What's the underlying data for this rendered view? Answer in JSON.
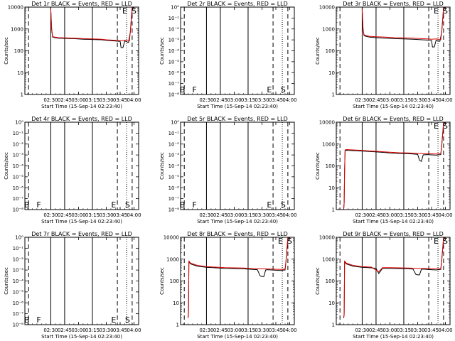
{
  "figure": {
    "x_axis_title": "Start Time (15-Sep-14 02:23:40)",
    "y_axis_title": "Counts/sec",
    "x_tick_labels": [
      "02:30",
      "02:45",
      "03:00",
      "03:15",
      "03:30",
      "03:45",
      "04:00"
    ],
    "event_marks": [
      "B",
      "F",
      "E",
      "S"
    ],
    "colors": {
      "events": "#000000",
      "lld": "#e00000",
      "background": "#ffffff"
    }
  },
  "chart_data": [
    {
      "type": "line",
      "title": "Det 1r BLACK = Events, RED = LLD",
      "xlabel": "Start Time (15-Sep-14 02:23:40)",
      "ylabel": "Counts/sec",
      "scale": "log",
      "ylim": [
        1,
        10000
      ],
      "y_tick_labels": [
        "1",
        "10",
        "100",
        "1000",
        "10000"
      ],
      "x_range_minutes": [
        -28,
        95
      ],
      "markers_drawn": [
        "E",
        "S"
      ],
      "has_data": true,
      "series": [
        {
          "name": "Events",
          "x": [
            0,
            1,
            2,
            3,
            4,
            5,
            8,
            15,
            25,
            35,
            45,
            55,
            60,
            65,
            70,
            75,
            76,
            78,
            80,
            82,
            83,
            84,
            86,
            88,
            90,
            92
          ],
          "y": [
            8000,
            900,
            420,
            420,
            400,
            400,
            380,
            370,
            360,
            340,
            330,
            320,
            300,
            290,
            280,
            270,
            140,
            140,
            280,
            260,
            250,
            240,
            700,
            9000,
            12000,
            12000
          ]
        },
        {
          "name": "LLD",
          "x": [
            0,
            1,
            2,
            3,
            4,
            5,
            8,
            15,
            25,
            35,
            45,
            55,
            60,
            65,
            70,
            75,
            80,
            85,
            86,
            88,
            90,
            92
          ],
          "y": [
            8000,
            1000,
            450,
            440,
            420,
            420,
            400,
            390,
            380,
            360,
            350,
            340,
            320,
            310,
            300,
            290,
            300,
            280,
            750,
            9500,
            12000,
            12000
          ]
        }
      ]
    },
    {
      "type": "line",
      "title": "Det 2r BLACK = Events, RED = LLD",
      "xlabel": "Start Time (15-Sep-14 02:23:40)",
      "ylabel": "Counts/sec",
      "scale": "log_empty",
      "y_tick_labels": [
        "10⁻⁸",
        "10⁻⁷",
        "10⁻⁶",
        "10⁻⁵",
        "10⁻⁴",
        "10⁻³",
        "10⁻²",
        "10⁻¹",
        "10⁰"
      ],
      "x_range_minutes": [
        -28,
        95
      ],
      "markers_drawn": [
        "B",
        "F",
        "E",
        "S"
      ],
      "has_data": false,
      "series": []
    },
    {
      "type": "line",
      "title": "Det 3r BLACK = Events, RED = LLD",
      "xlabel": "Start Time (15-Sep-14 02:23:40)",
      "ylabel": "Counts/sec",
      "scale": "log",
      "ylim": [
        1,
        10000
      ],
      "y_tick_labels": [
        "1",
        "10",
        "100",
        "1000",
        "10000"
      ],
      "x_range_minutes": [
        -28,
        95
      ],
      "markers_drawn": [
        "E",
        "S"
      ],
      "has_data": true,
      "series": [
        {
          "name": "Events",
          "x": [
            0,
            1,
            2,
            3,
            4,
            5,
            8,
            15,
            25,
            35,
            45,
            55,
            60,
            65,
            70,
            75,
            76,
            78,
            80,
            82,
            83,
            84,
            86,
            88,
            90,
            92
          ],
          "y": [
            8000,
            900,
            500,
            480,
            460,
            450,
            420,
            400,
            380,
            360,
            350,
            340,
            330,
            320,
            310,
            300,
            150,
            150,
            310,
            290,
            280,
            270,
            700,
            9000,
            12000,
            12000
          ]
        },
        {
          "name": "LLD",
          "x": [
            0,
            1,
            2,
            3,
            4,
            5,
            8,
            15,
            25,
            35,
            45,
            55,
            60,
            65,
            70,
            75,
            80,
            85,
            86,
            88,
            90,
            92
          ],
          "y": [
            8000,
            1000,
            540,
            520,
            500,
            490,
            460,
            440,
            420,
            400,
            390,
            380,
            370,
            360,
            350,
            340,
            350,
            330,
            750,
            9500,
            12000,
            12000
          ]
        }
      ]
    },
    {
      "type": "line",
      "title": "Det 4r BLACK = Events, RED = LLD",
      "xlabel": "Start Time (15-Sep-14 02:23:40)",
      "ylabel": "Counts/sec",
      "scale": "log_empty",
      "y_tick_labels": [
        "10⁻⁸",
        "10⁻⁷",
        "10⁻⁶",
        "10⁻⁵",
        "10⁻⁴",
        "10⁻³",
        "10⁻²",
        "10⁻¹",
        "10⁰"
      ],
      "x_range_minutes": [
        -28,
        95
      ],
      "markers_drawn": [
        "B",
        "F",
        "E",
        "S"
      ],
      "has_data": false,
      "series": []
    },
    {
      "type": "line",
      "title": "Det 5r BLACK = Events, RED = LLD",
      "xlabel": "Start Time (15-Sep-14 02:23:40)",
      "ylabel": "Counts/sec",
      "scale": "log_empty",
      "y_tick_labels": [
        "10⁻⁸",
        "10⁻⁷",
        "10⁻⁶",
        "10⁻⁵",
        "10⁻⁴",
        "10⁻³",
        "10⁻²",
        "10⁻¹",
        "10⁰"
      ],
      "x_range_minutes": [
        -28,
        95
      ],
      "markers_drawn": [
        "B",
        "F",
        "E",
        "S"
      ],
      "has_data": false,
      "series": []
    },
    {
      "type": "line",
      "title": "Det 6r BLACK = Events, RED = LLD",
      "xlabel": "Start Time (15-Sep-14 02:23:40)",
      "ylabel": "Counts/sec",
      "scale": "log",
      "ylim": [
        1,
        10000
      ],
      "y_tick_labels": [
        "1",
        "10",
        "100",
        "1000",
        "10000"
      ],
      "x_range_minutes": [
        -28,
        95
      ],
      "markers_drawn": [
        "E",
        "S"
      ],
      "has_data": true,
      "series": [
        {
          "name": "Events",
          "x": [
            -20,
            -19.5,
            -19,
            -18.5,
            -17,
            -10,
            0,
            10,
            20,
            30,
            40,
            50,
            55,
            60,
            62,
            64,
            66,
            70,
            75,
            80,
            85,
            86,
            88,
            90,
            92
          ],
          "y": [
            1,
            2,
            60,
            500,
            520,
            500,
            480,
            450,
            420,
            390,
            370,
            360,
            350,
            340,
            180,
            160,
            320,
            330,
            320,
            310,
            330,
            800,
            9000,
            12000,
            12000
          ]
        },
        {
          "name": "LLD",
          "x": [
            -20,
            -19.5,
            -19,
            -18.5,
            -17,
            -10,
            0,
            10,
            20,
            30,
            40,
            50,
            60,
            70,
            80,
            85,
            86,
            88,
            90,
            92
          ],
          "y": [
            1,
            2,
            70,
            540,
            560,
            540,
            510,
            480,
            450,
            420,
            400,
            390,
            370,
            360,
            350,
            360,
            850,
            9500,
            12000,
            12000
          ]
        }
      ]
    },
    {
      "type": "line",
      "title": "Det 7r BLACK = Events, RED = LLD",
      "xlabel": "Start Time (15-Sep-14 02:23:40)",
      "ylabel": "Counts/sec",
      "scale": "log_empty",
      "y_tick_labels": [
        "10⁻⁸",
        "10⁻⁷",
        "10⁻⁶",
        "10⁻⁵",
        "10⁻⁴",
        "10⁻³",
        "10⁻²",
        "10⁻¹",
        "10⁰"
      ],
      "x_range_minutes": [
        -28,
        95
      ],
      "markers_drawn": [
        "B",
        "F",
        "E",
        "S"
      ],
      "has_data": false,
      "series": []
    },
    {
      "type": "line",
      "title": "Det 8r BLACK = Events, RED = LLD",
      "xlabel": "Start Time (15-Sep-14 02:23:40)",
      "ylabel": "Counts/sec",
      "scale": "log",
      "ylim": [
        1,
        10000
      ],
      "y_tick_labels": [
        "1",
        "10",
        "100",
        "1000",
        "10000"
      ],
      "x_range_minutes": [
        -28,
        95
      ],
      "markers_drawn": [
        "E",
        "S"
      ],
      "has_data": true,
      "series": [
        {
          "name": "Events",
          "x": [
            -20,
            -19.5,
            -19,
            -18.5,
            -17,
            -10,
            0,
            10,
            20,
            30,
            40,
            50,
            55,
            58,
            60,
            62,
            64,
            66,
            70,
            75,
            80,
            85,
            86,
            88,
            90,
            92
          ],
          "y": [
            2,
            3,
            800,
            700,
            600,
            480,
            420,
            400,
            380,
            370,
            360,
            340,
            330,
            170,
            160,
            160,
            320,
            330,
            320,
            310,
            300,
            320,
            800,
            9000,
            12000,
            12000
          ]
        },
        {
          "name": "LLD",
          "x": [
            -20,
            -19.5,
            -19,
            -18.5,
            -17,
            -10,
            0,
            10,
            20,
            30,
            40,
            50,
            60,
            70,
            80,
            85,
            86,
            88,
            90,
            92
          ],
          "y": [
            2,
            3,
            850,
            750,
            650,
            520,
            450,
            430,
            410,
            400,
            390,
            370,
            360,
            350,
            340,
            350,
            850,
            9500,
            12000,
            12000
          ]
        }
      ]
    },
    {
      "type": "line",
      "title": "Det 9r BLACK = Events, RED = LLD",
      "xlabel": "Start Time (15-Sep-14 02:23:40)",
      "ylabel": "Counts/sec",
      "scale": "log",
      "ylim": [
        1,
        10000
      ],
      "y_tick_labels": [
        "1",
        "10",
        "100",
        "1000",
        "10000"
      ],
      "x_range_minutes": [
        -28,
        95
      ],
      "markers_drawn": [
        "E",
        "S"
      ],
      "has_data": true,
      "series": [
        {
          "name": "Events",
          "x": [
            -20,
            -19.5,
            -19,
            -18.5,
            -17,
            -10,
            0,
            10,
            15,
            18,
            22,
            30,
            40,
            50,
            55,
            58,
            60,
            62,
            64,
            66,
            70,
            75,
            80,
            85,
            86,
            88,
            90,
            92
          ],
          "y": [
            2,
            3,
            800,
            700,
            600,
            480,
            420,
            400,
            380,
            220,
            380,
            380,
            370,
            360,
            350,
            200,
            190,
            190,
            340,
            350,
            340,
            330,
            320,
            340,
            850,
            9000,
            12000,
            12000
          ]
        },
        {
          "name": "LLD",
          "x": [
            -20,
            -19.5,
            -19,
            -18.5,
            -17,
            -10,
            0,
            10,
            18,
            22,
            30,
            40,
            50,
            60,
            70,
            80,
            85,
            86,
            88,
            90,
            92
          ],
          "y": [
            2,
            3,
            850,
            750,
            650,
            520,
            450,
            430,
            260,
            410,
            410,
            400,
            390,
            380,
            370,
            360,
            370,
            880,
            9500,
            12000,
            12000
          ]
        }
      ]
    }
  ]
}
